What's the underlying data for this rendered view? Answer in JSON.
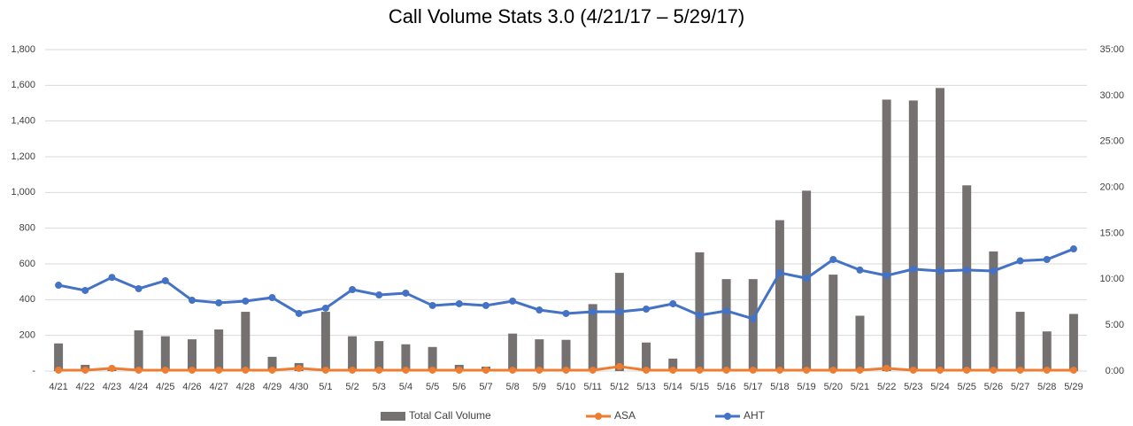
{
  "chart_data": {
    "type": "bar-line",
    "title": "Call Volume Stats 3.0 (4/21/17 – 5/29/17)",
    "categories": [
      "4/21",
      "4/22",
      "4/23",
      "4/24",
      "4/25",
      "4/26",
      "4/27",
      "4/28",
      "4/29",
      "4/30",
      "5/1",
      "5/2",
      "5/3",
      "5/4",
      "5/5",
      "5/6",
      "5/7",
      "5/8",
      "5/9",
      "5/10",
      "5/11",
      "5/12",
      "5/13",
      "5/14",
      "5/15",
      "5/16",
      "5/17",
      "5/18",
      "5/19",
      "5/20",
      "5/21",
      "5/22",
      "5/23",
      "5/24",
      "5/25",
      "5/26",
      "5/27",
      "5/28",
      "5/29"
    ],
    "series": [
      {
        "name": "Total Call Volume",
        "type": "bar",
        "color": "#767171",
        "values": [
          155,
          35,
          15,
          228,
          195,
          178,
          233,
          332,
          80,
          45,
          332,
          195,
          168,
          150,
          135,
          35,
          25,
          210,
          178,
          175,
          375,
          550,
          160,
          70,
          665,
          515,
          515,
          845,
          1010,
          540,
          310,
          1520,
          1515,
          1585,
          1040,
          670,
          332,
          222,
          320
        ]
      },
      {
        "name": "ASA",
        "type": "line",
        "axis": "y2",
        "color": "#ed7d31",
        "values": [
          0.1,
          0.1,
          0.3,
          0.1,
          0.1,
          0.1,
          0.1,
          0.1,
          0.1,
          0.3,
          0.1,
          0.1,
          0.1,
          0.1,
          0.1,
          0.1,
          0.1,
          0.1,
          0.1,
          0.1,
          0.1,
          0.5,
          0.1,
          0.1,
          0.1,
          0.1,
          0.1,
          0.1,
          0.1,
          0.1,
          0.1,
          0.3,
          0.1,
          0.1,
          0.1,
          0.1,
          0.1,
          0.1,
          0.1
        ]
      },
      {
        "name": "AHT",
        "type": "line",
        "axis": "y2",
        "color": "#4472c4",
        "values": [
          9.35,
          8.78,
          10.2,
          8.97,
          9.84,
          7.71,
          7.43,
          7.62,
          8.0,
          6.27,
          6.85,
          8.87,
          8.29,
          8.49,
          7.14,
          7.33,
          7.14,
          7.62,
          6.65,
          6.27,
          6.46,
          6.46,
          6.75,
          7.33,
          6.08,
          6.56,
          5.69,
          10.7,
          10.1,
          12.15,
          11.0,
          10.4,
          11.1,
          10.9,
          11.0,
          10.9,
          12.0,
          12.15,
          13.3
        ]
      }
    ],
    "ylim": [
      0,
      1800
    ],
    "yticks": [
      {
        "value": 0,
        "label": "-"
      },
      200,
      400,
      600,
      800,
      {
        "value": 1000,
        "label": "1,000"
      },
      {
        "value": 1200,
        "label": "1,200"
      },
      {
        "value": 1400,
        "label": "1,400"
      },
      {
        "value": 1600,
        "label": "1,600"
      },
      {
        "value": 1800,
        "label": "1,800"
      }
    ],
    "y2lim": [
      0,
      35
    ],
    "y2ticks": [
      {
        "value": 0,
        "label": "0:00"
      },
      {
        "value": 5,
        "label": "5:00"
      },
      {
        "value": 10,
        "label": "10:00"
      },
      {
        "value": 15,
        "label": "15:00"
      },
      {
        "value": 20,
        "label": "20:00"
      },
      {
        "value": 25,
        "label": "25:00"
      },
      {
        "value": 30,
        "label": "30:00"
      },
      {
        "value": 35,
        "label": "35:00"
      }
    ],
    "grid": true,
    "legend": "bottom"
  }
}
